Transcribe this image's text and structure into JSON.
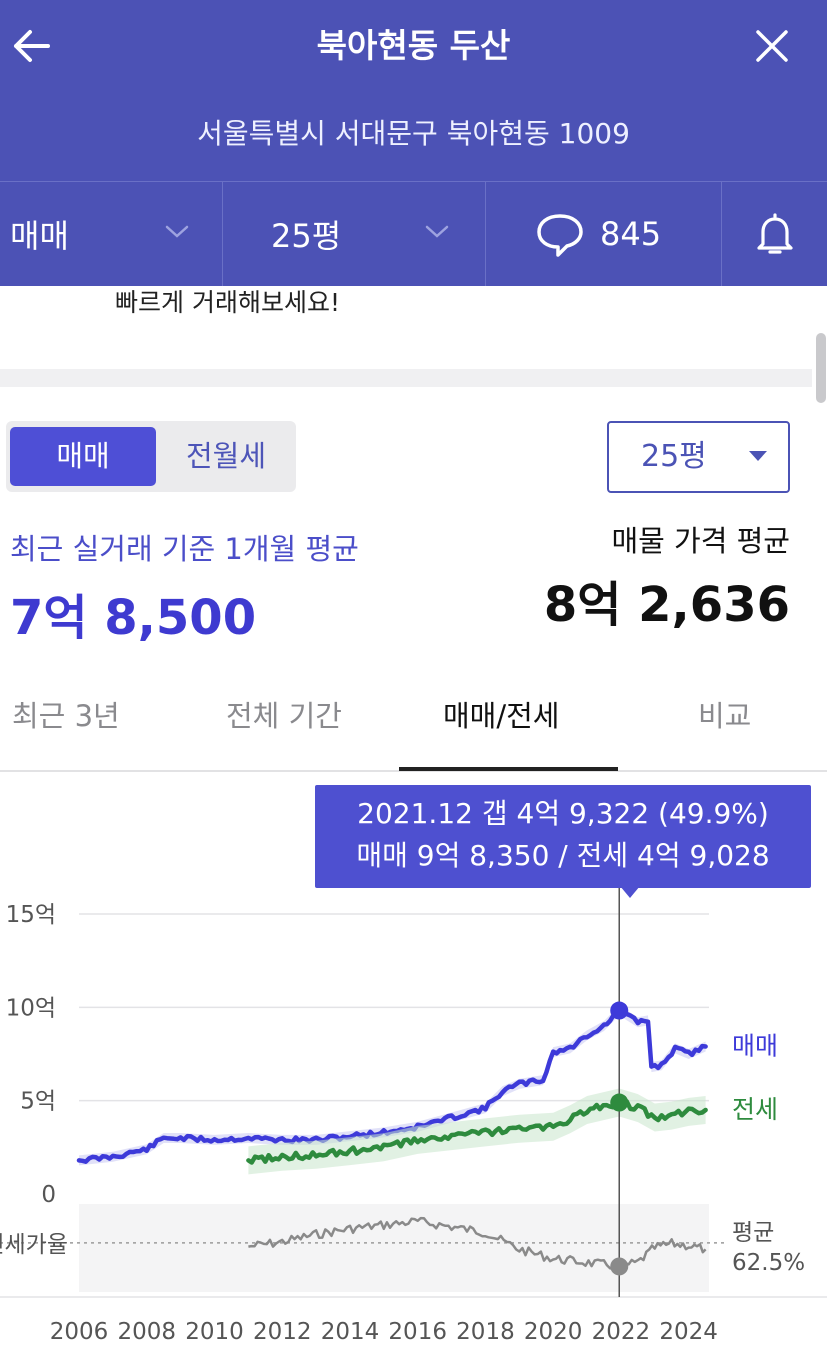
{
  "header": {
    "title": "북아현동 두산",
    "address": "서울특별시 서대문구 북아현동 1009",
    "icons": {
      "back": "arrow-left-icon",
      "close": "close-icon"
    }
  },
  "selectors": {
    "trade_type": "매매",
    "size": "25평",
    "comment_count": "845",
    "icons": {
      "comment": "speech-bubble-icon",
      "alarm": "bell-icon",
      "dropdown": "chevron-down-icon"
    }
  },
  "banner": {
    "text": "빠르게 거래해보세요!"
  },
  "toggle": {
    "active": "매매",
    "inactive": "전월세"
  },
  "size_dropdown": {
    "label": "25평"
  },
  "summary": {
    "recent_caption": "최근 실거래 기준 1개월 평균",
    "recent_price": "7억 8,500",
    "listing_caption": "매물 가격 평균",
    "listing_price": "8억 2,636"
  },
  "tabs": [
    {
      "label": "최근 3년",
      "active": false
    },
    {
      "label": "전체 기간",
      "active": false
    },
    {
      "label": "매매/전세",
      "active": true
    },
    {
      "label": "비교",
      "active": false
    }
  ],
  "tooltip": {
    "line1": "2021.12  갭 4억 9,322 (49.9%)",
    "line2": "매매 9억 8,350 / 전세 4억 9,028"
  },
  "chart_data": {
    "type": "line",
    "x_range": [
      2006,
      2024.6
    ],
    "ylim": [
      0,
      15
    ],
    "y_ticks": [
      {
        "value": 0,
        "label": "0"
      },
      {
        "value": 5,
        "label": "5억"
      },
      {
        "value": 10,
        "label": "10억"
      },
      {
        "value": 15,
        "label": "15억"
      }
    ],
    "x_ticks": [
      "2006",
      "2008",
      "2010",
      "2012",
      "2014",
      "2016",
      "2018",
      "2020",
      "2022",
      "2024"
    ],
    "series": [
      {
        "name": "매매",
        "color": "#3d3ad9",
        "points": [
          [
            2006,
            1.8
          ],
          [
            2007,
            2.0
          ],
          [
            2008,
            2.4
          ],
          [
            2008.5,
            3.0
          ],
          [
            2009,
            3.0
          ],
          [
            2010,
            2.9
          ],
          [
            2011,
            3.0
          ],
          [
            2012,
            2.9
          ],
          [
            2013,
            2.9
          ],
          [
            2014,
            3.1
          ],
          [
            2015,
            3.3
          ],
          [
            2016,
            3.6
          ],
          [
            2017,
            4.1
          ],
          [
            2018,
            4.6
          ],
          [
            2018.5,
            5.5
          ],
          [
            2019,
            5.9
          ],
          [
            2019.7,
            6.1
          ],
          [
            2020,
            7.6
          ],
          [
            2020.5,
            7.8
          ],
          [
            2021,
            8.5
          ],
          [
            2021.5,
            9.0
          ],
          [
            2021.95,
            9.83
          ],
          [
            2022.5,
            9.2
          ],
          [
            2022.8,
            9.3
          ],
          [
            2022.9,
            6.8
          ],
          [
            2023.2,
            6.9
          ],
          [
            2023.6,
            7.8
          ],
          [
            2024,
            7.5
          ],
          [
            2024.5,
            7.9
          ]
        ]
      },
      {
        "name": "전세",
        "color": "#2e8b3e",
        "points": [
          [
            2011,
            1.8
          ],
          [
            2012,
            2.0
          ],
          [
            2013,
            2.1
          ],
          [
            2014,
            2.3
          ],
          [
            2015,
            2.5
          ],
          [
            2016,
            2.9
          ],
          [
            2017,
            3.1
          ],
          [
            2018,
            3.3
          ],
          [
            2019,
            3.5
          ],
          [
            2020,
            3.6
          ],
          [
            2020.5,
            4.0
          ],
          [
            2021,
            4.5
          ],
          [
            2021.95,
            4.9
          ],
          [
            2022.5,
            4.6
          ],
          [
            2023,
            4.1
          ],
          [
            2023.5,
            4.2
          ],
          [
            2024,
            4.4
          ],
          [
            2024.5,
            4.5
          ]
        ]
      }
    ],
    "ratio_series": {
      "label": "전세가율",
      "color": "#8a8a8a",
      "average_label": "평균",
      "average_value": "62.5%",
      "points": [
        [
          2011,
          60.5
        ],
        [
          2012,
          63
        ],
        [
          2013,
          67
        ],
        [
          2014,
          70
        ],
        [
          2015,
          72
        ],
        [
          2016,
          74
        ],
        [
          2017,
          71
        ],
        [
          2018,
          68
        ],
        [
          2019,
          59
        ],
        [
          2020,
          54
        ],
        [
          2020.5,
          53
        ],
        [
          2021.95,
          49.9
        ],
        [
          2022.5,
          52
        ],
        [
          2023,
          60
        ],
        [
          2023.5,
          62
        ],
        [
          2024,
          61
        ],
        [
          2024.5,
          59
        ]
      ]
    },
    "marker": {
      "x": 2021.95,
      "sale": 9.83,
      "jeonse": 4.9,
      "ratio": 49.9
    }
  }
}
